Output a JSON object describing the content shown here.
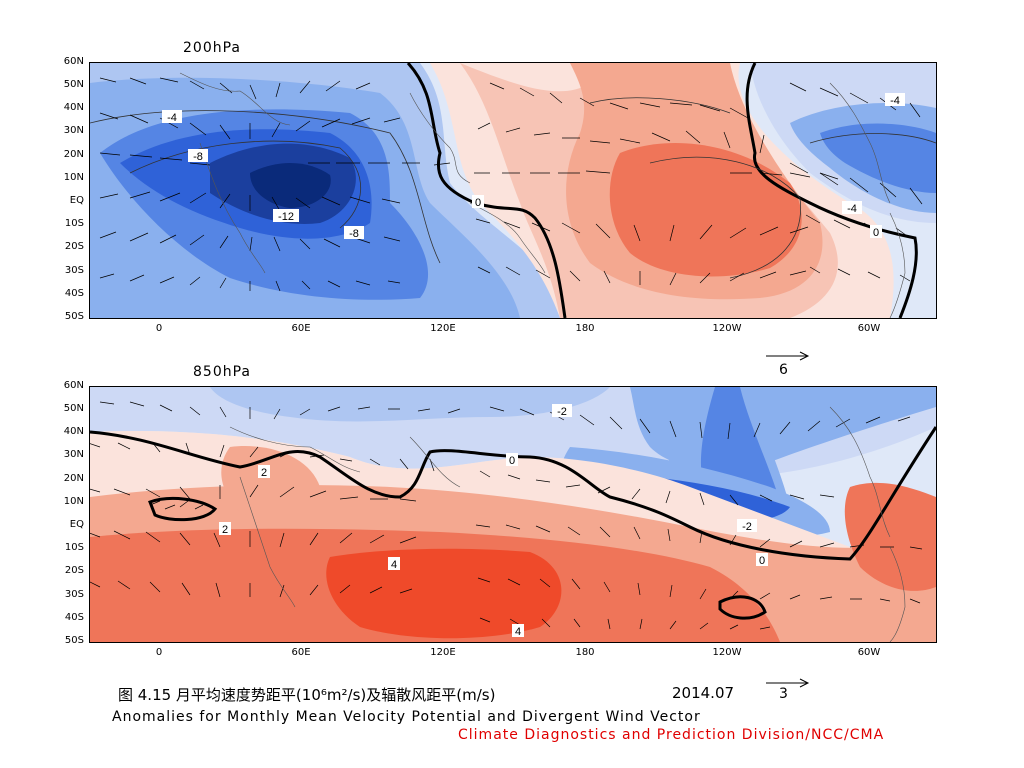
{
  "panels": [
    {
      "title": "200hPa",
      "contour_labels": [
        "-4",
        "-8",
        "-12",
        "-8",
        "0",
        "0",
        "-4",
        "-4"
      ],
      "ref_vector_value": "6"
    },
    {
      "title": "850hPa",
      "contour_labels": [
        "2",
        "2",
        "-2",
        "4",
        "4",
        "-2",
        "0",
        "0"
      ],
      "ref_vector_value": "3"
    }
  ],
  "axes": {
    "lat_labels": [
      "60N",
      "50N",
      "40N",
      "30N",
      "20N",
      "10N",
      "EQ",
      "10S",
      "20S",
      "30S",
      "40S",
      "50S"
    ],
    "lon_labels": [
      "0",
      "60E",
      "120E",
      "180",
      "120W",
      "60W"
    ]
  },
  "caption": {
    "line1_cn": "图  4.15  月平均速度势距平(10⁶m²/s)及辐散风距平(m/s)",
    "date": "2014.07",
    "line2": "Anomalies for Monthly Mean Velocity Potential and Divergent Wind Vector",
    "credit": "Climate Diagnostics and Prediction Division/NCC/CMA"
  },
  "colors": {
    "neg_dark": "#0a2a7a",
    "neg_mid": "#2f62d8",
    "neg_light": "#8ab0ee",
    "neg_pale": "#dfe8f8",
    "pos_pale": "#fbe3dc",
    "pos_light": "#f4a890",
    "pos_mid": "#ef7559",
    "pos_strong": "#ef4a2a",
    "credit": "#e00000"
  }
}
